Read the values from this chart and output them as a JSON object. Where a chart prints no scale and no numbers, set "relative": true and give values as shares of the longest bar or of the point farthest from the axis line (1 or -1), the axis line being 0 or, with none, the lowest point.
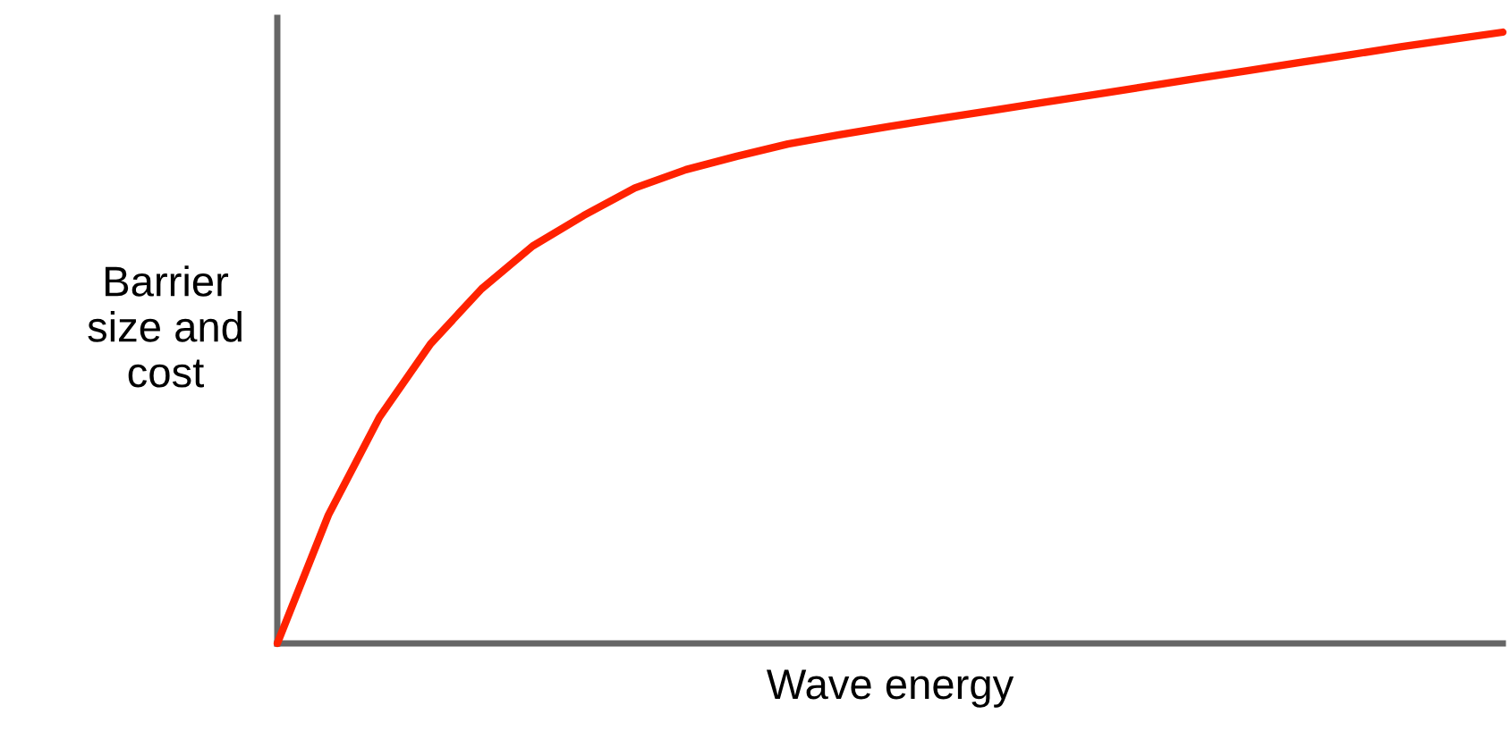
{
  "chart_data": {
    "type": "line",
    "relative": true,
    "xlabel": "Wave energy",
    "ylabel": "Barrier\nsize and\ncost",
    "categories": [
      null,
      null,
      null,
      null,
      null,
      null,
      null,
      null,
      null,
      null,
      null,
      null,
      null,
      null,
      null,
      null,
      null,
      null,
      null,
      null,
      null,
      null,
      null,
      null,
      null
    ],
    "series": [
      {
        "color": "#ff2200",
        "values": [
          0,
          0.21,
          0.37,
          0.49,
          0.58,
          0.65,
          0.7,
          0.745,
          0.775,
          0.797,
          0.817,
          0.832,
          0.846,
          0.859,
          0.872,
          0.885,
          0.898,
          0.911,
          0.924,
          0.937,
          0.95,
          0.963,
          0.976,
          0.988,
          1
        ]
      }
    ],
    "grid": false,
    "legend": false,
    "tick_labels": false,
    "marker": "none",
    "line_style": "solid"
  }
}
